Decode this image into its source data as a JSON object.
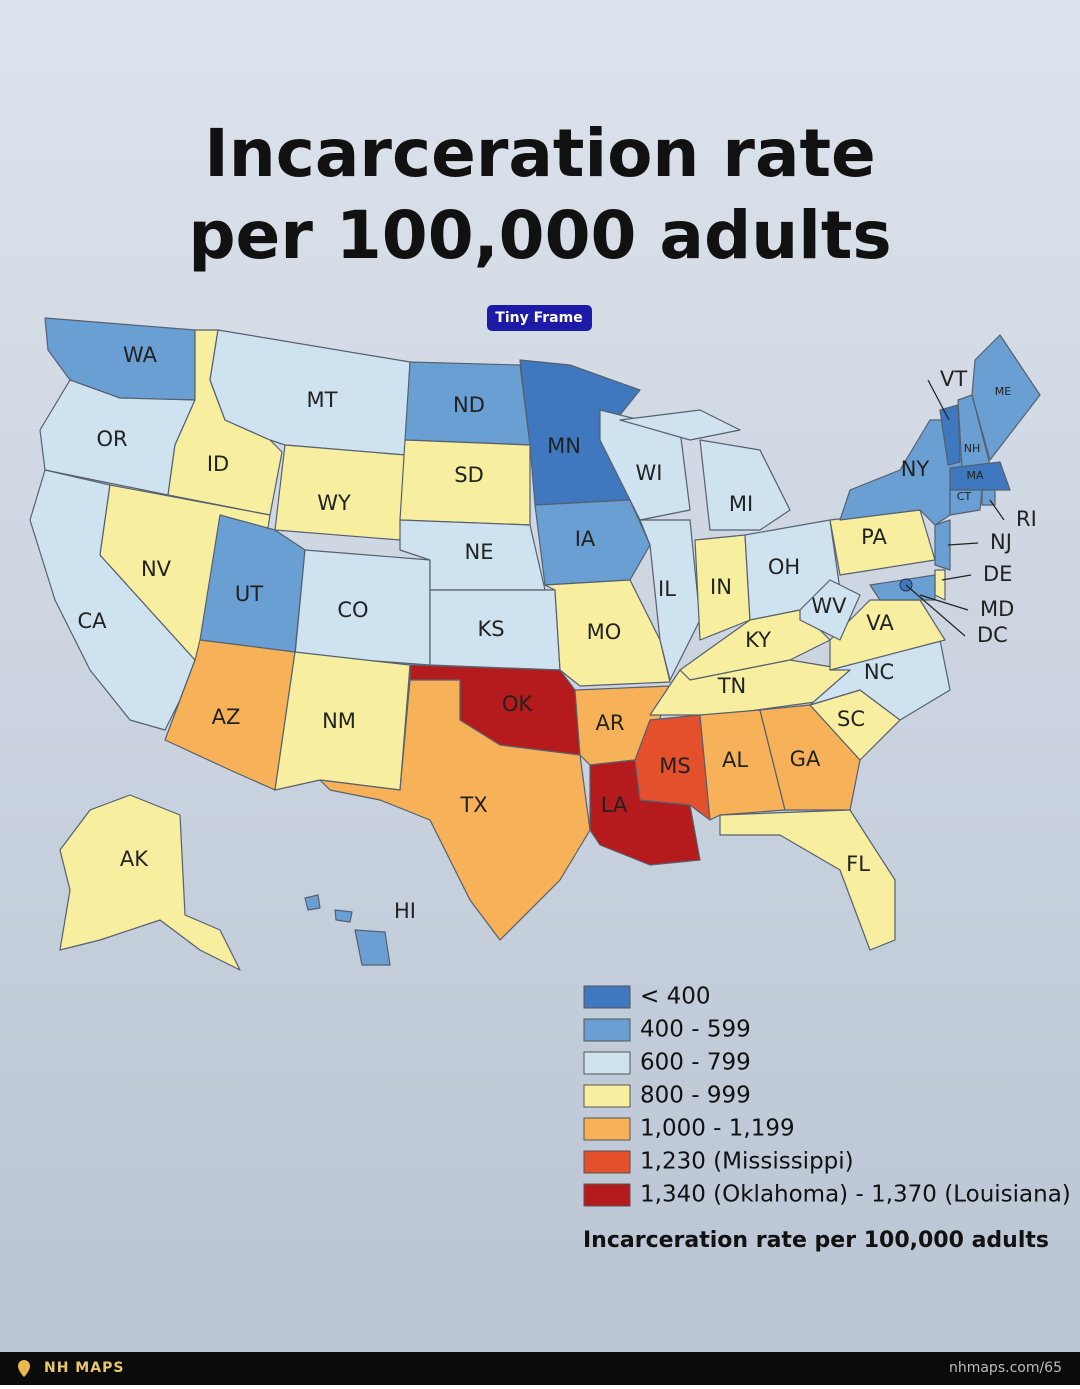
{
  "title_line1": "Incarceration rate",
  "title_line2": "per 100,000 adults",
  "badge": "Tiny Frame",
  "states": [
    {
      "label": "WA",
      "color": "#6a9fd4"
    },
    {
      "label": "OR",
      "color": "#cfe2f0"
    },
    {
      "label": "CA",
      "color": "#cfe2f0"
    },
    {
      "label": "ID",
      "color": "#f8eea0"
    },
    {
      "label": "NV",
      "color": "#f8eea0"
    },
    {
      "label": "MT",
      "color": "#cfe2f0"
    },
    {
      "label": "WY",
      "color": "#f8eea0"
    },
    {
      "label": "UT",
      "color": "#6a9fd4"
    },
    {
      "label": "CO",
      "color": "#cfe2f0"
    },
    {
      "label": "AZ",
      "color": "#f7b158"
    },
    {
      "label": "NM",
      "color": "#f8eea0"
    },
    {
      "label": "ND",
      "color": "#6a9fd4"
    },
    {
      "label": "SD",
      "color": "#f8eea0"
    },
    {
      "label": "NE",
      "color": "#cfe2f0"
    },
    {
      "label": "KS",
      "color": "#cfe2f0"
    },
    {
      "label": "OK",
      "color": "#b51a1c"
    },
    {
      "label": "TX",
      "color": "#f7b158"
    },
    {
      "label": "MN",
      "color": "#3f78bf"
    },
    {
      "label": "IA",
      "color": "#6a9fd4"
    },
    {
      "label": "MO",
      "color": "#f8eea0"
    },
    {
      "label": "AR",
      "color": "#f7b158"
    },
    {
      "label": "LA",
      "color": "#b51a1c"
    },
    {
      "label": "WI",
      "color": "#cfe2f0"
    },
    {
      "label": "IL",
      "color": "#cfe2f0"
    },
    {
      "label": "MI",
      "color": "#cfe2f0"
    },
    {
      "label": "IN",
      "color": "#f8eea0"
    },
    {
      "label": "OH",
      "color": "#cfe2f0"
    },
    {
      "label": "KY",
      "color": "#f8eea0"
    },
    {
      "label": "TN",
      "color": "#f8eea0"
    },
    {
      "label": "MS",
      "color": "#e5502c"
    },
    {
      "label": "AL",
      "color": "#f7b158"
    },
    {
      "label": "GA",
      "color": "#f7b158"
    },
    {
      "label": "FL",
      "color": "#f8eea0"
    },
    {
      "label": "SC",
      "color": "#f8eea0"
    },
    {
      "label": "NC",
      "color": "#cfe2f0"
    },
    {
      "label": "VA",
      "color": "#f8eea0"
    },
    {
      "label": "WV",
      "color": "#cfe2f0"
    },
    {
      "label": "PA",
      "color": "#f8eea0"
    },
    {
      "label": "NY",
      "color": "#6a9fd4"
    },
    {
      "label": "VT",
      "color": "#3f78bf"
    },
    {
      "label": "NH",
      "color": "#6a9fd4"
    },
    {
      "label": "ME",
      "color": "#6a9fd4"
    },
    {
      "label": "MA",
      "color": "#3f78bf"
    },
    {
      "label": "CT",
      "color": "#6a9fd4"
    },
    {
      "label": "RI",
      "color": "#6a9fd4"
    },
    {
      "label": "NJ",
      "color": "#6a9fd4"
    },
    {
      "label": "DE",
      "color": "#f8eea0"
    },
    {
      "label": "MD",
      "color": "#6a9fd4"
    },
    {
      "label": "DC",
      "color": "#3f78bf"
    },
    {
      "label": "AK",
      "color": "#f8eea0"
    },
    {
      "label": "HI",
      "color": "#6a9fd4"
    }
  ],
  "legend": {
    "items": [
      {
        "label": "< 400",
        "color": "#3f78bf"
      },
      {
        "label": "400 - 599",
        "color": "#6a9fd4"
      },
      {
        "label": "600 - 799",
        "color": "#cfe2f0"
      },
      {
        "label": "800 - 999",
        "color": "#f8eea0"
      },
      {
        "label": "1,000 - 1,199",
        "color": "#f7b158"
      },
      {
        "label": "1,230 (Mississippi)",
        "color": "#e5502c"
      },
      {
        "label": "1,340 (Oklahoma) - 1,370 (Louisiana)",
        "color": "#b51a1c"
      }
    ],
    "title": "Incarceration rate per 100,000 adults"
  },
  "footer": {
    "brand": "NH MAPS",
    "url": "nhmaps.com/65"
  }
}
